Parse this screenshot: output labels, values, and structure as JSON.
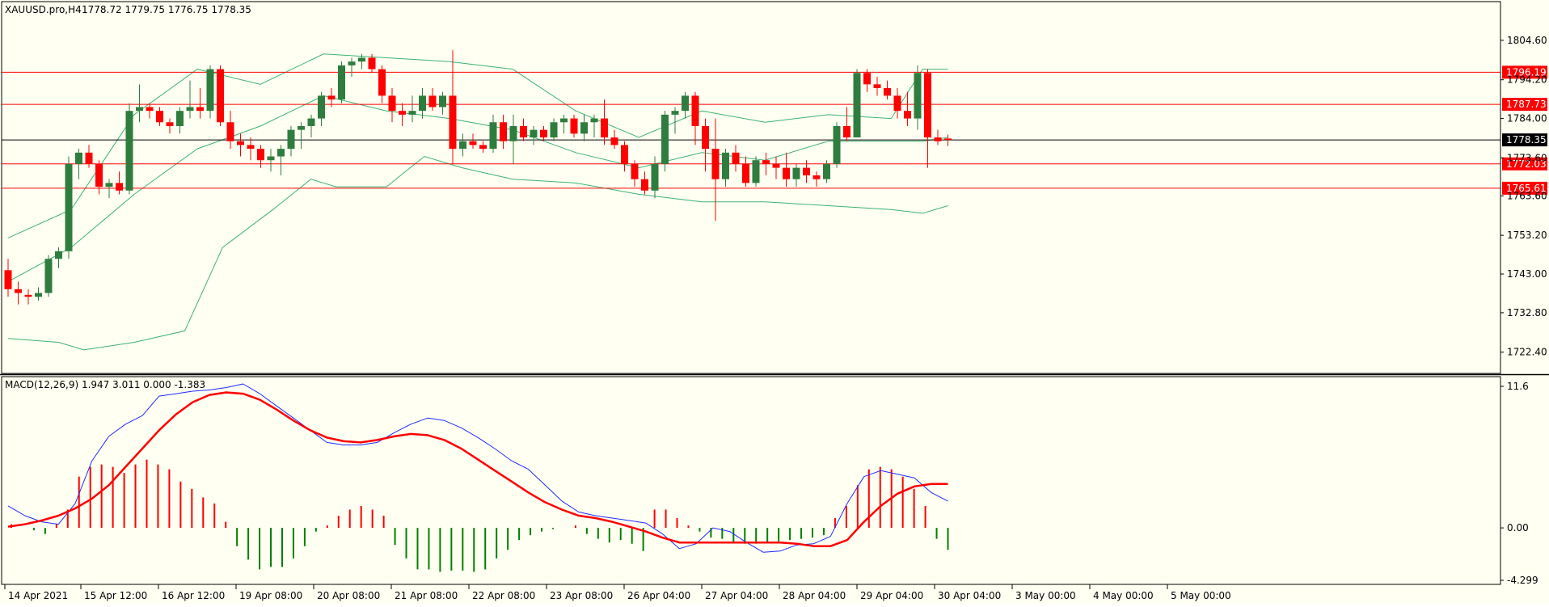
{
  "window": {
    "symbol_label": "XAUUSD.pro,H4",
    "ohlc_label": "1778.72 1779.75 1776.75 1778.35"
  },
  "macd_label": "MACD(12,26,9) 1.947 3.011 0.000 -1.383",
  "colors": {
    "background": "#fffff2",
    "bull": "#2e7d3e",
    "bear": "#ff0000",
    "bollinger": "#3cb371",
    "macd_line": "#1f2bff",
    "signal_line": "#ff0000",
    "hist_pos": "#ff0000",
    "hist_neg": "#008000",
    "hline": "#ff0000",
    "current": "#000000"
  },
  "chart_data": [
    {
      "type": "candlestick",
      "title": "XAUUSD.pro,H4",
      "ylim": [
        1716.8,
        1814.8
      ],
      "y_ticks": [
        "1804.60",
        "1794.20",
        "1784.00",
        "1773.60",
        "1763.60",
        "1753.20",
        "1743.00",
        "1732.80",
        "1722.40"
      ],
      "x_ticks": [
        "14 Apr 2021",
        "15 Apr 12:00",
        "16 Apr 12:00",
        "19 Apr 08:00",
        "20 Apr 08:00",
        "21 Apr 08:00",
        "22 Apr 08:00",
        "23 Apr 08:00",
        "26 Apr 04:00",
        "27 Apr 04:00",
        "28 Apr 04:00",
        "29 Apr 04:00",
        "30 Apr 04:00",
        "3 May 00:00",
        "4 May 00:00",
        "5 May 00:00"
      ],
      "horizontal_levels": [
        {
          "label": "1796.19",
          "value": 1796.19
        },
        {
          "label": "1787.73",
          "value": 1787.73
        },
        {
          "label": "1772.03",
          "value": 1772.03
        },
        {
          "label": "1765.61",
          "value": 1765.61
        }
      ],
      "current_price": {
        "label": "1778.35",
        "value": 1778.35
      },
      "candles": [
        [
          1744.0,
          1747.0,
          1737.0,
          1739.0
        ],
        [
          1739.0,
          1741.0,
          1735.0,
          1738.0
        ],
        [
          1737.5,
          1739.0,
          1735.0,
          1737.0
        ],
        [
          1737.0,
          1739.5,
          1736.0,
          1738.0
        ],
        [
          1738.0,
          1748.0,
          1737.0,
          1747.0
        ],
        [
          1747.0,
          1750.0,
          1744.5,
          1749.0
        ],
        [
          1749.0,
          1774.0,
          1747.0,
          1772.0
        ],
        [
          1772.0,
          1776.0,
          1768.0,
          1775.0
        ],
        [
          1775.0,
          1777.0,
          1771.0,
          1772.0
        ],
        [
          1772.0,
          1773.0,
          1764.0,
          1766.0
        ],
        [
          1766.0,
          1768.0,
          1763.0,
          1767.0
        ],
        [
          1767.0,
          1770.0,
          1764.0,
          1765.0
        ],
        [
          1765.0,
          1788.0,
          1764.0,
          1786.0
        ],
        [
          1786.0,
          1793.0,
          1783.0,
          1787.0
        ],
        [
          1787.0,
          1788.0,
          1784.0,
          1786.0
        ],
        [
          1786.0,
          1787.0,
          1782.0,
          1783.0
        ],
        [
          1783.0,
          1784.0,
          1780.0,
          1782.0
        ],
        [
          1782.0,
          1787.0,
          1780.0,
          1786.0
        ],
        [
          1786.0,
          1794.0,
          1784.0,
          1787.0
        ],
        [
          1787.0,
          1792.0,
          1784.0,
          1786.0
        ],
        [
          1786.0,
          1798.0,
          1784.0,
          1797.0
        ],
        [
          1797.0,
          1798.0,
          1782.0,
          1783.0
        ],
        [
          1783.0,
          1786.0,
          1776.0,
          1778.0
        ],
        [
          1778.0,
          1780.0,
          1774.0,
          1777.0
        ],
        [
          1777.0,
          1779.0,
          1773.0,
          1776.0
        ],
        [
          1776.0,
          1777.0,
          1771.0,
          1773.0
        ],
        [
          1773.0,
          1776.0,
          1770.0,
          1774.0
        ],
        [
          1774.0,
          1777.0,
          1769.0,
          1776.0
        ],
        [
          1776.0,
          1782.0,
          1774.0,
          1781.0
        ],
        [
          1781.0,
          1783.0,
          1776.0,
          1782.0
        ],
        [
          1782.0,
          1785.0,
          1779.0,
          1784.0
        ],
        [
          1784.0,
          1791.0,
          1782.0,
          1790.0
        ],
        [
          1790.0,
          1792.0,
          1787.0,
          1789.0
        ],
        [
          1789.0,
          1799.0,
          1788.0,
          1798.0
        ],
        [
          1798.0,
          1800.0,
          1795.0,
          1799.0
        ],
        [
          1799.0,
          1801.0,
          1797.0,
          1800.0
        ],
        [
          1800.0,
          1801.0,
          1796.0,
          1797.0
        ],
        [
          1797.0,
          1798.0,
          1788.0,
          1790.0
        ],
        [
          1790.0,
          1792.0,
          1783.0,
          1786.0
        ],
        [
          1786.0,
          1788.0,
          1782.0,
          1785.0
        ],
        [
          1785.0,
          1790.0,
          1783.0,
          1786.0
        ],
        [
          1786.0,
          1792.0,
          1784.0,
          1790.0
        ],
        [
          1790.0,
          1792.0,
          1786.0,
          1787.0
        ],
        [
          1787.0,
          1791.0,
          1785.0,
          1790.0
        ],
        [
          1790.0,
          1802.0,
          1772.0,
          1776.0
        ],
        [
          1776.0,
          1780.0,
          1774.0,
          1778.0
        ],
        [
          1778.0,
          1780.0,
          1776.0,
          1777.0
        ],
        [
          1777.0,
          1778.0,
          1775.0,
          1776.0
        ],
        [
          1776.0,
          1785.0,
          1775.0,
          1783.0
        ],
        [
          1783.0,
          1785.0,
          1776.0,
          1778.0
        ],
        [
          1778.0,
          1785.0,
          1772.0,
          1782.0
        ],
        [
          1782.0,
          1784.0,
          1778.0,
          1779.0
        ],
        [
          1779.0,
          1782.0,
          1777.0,
          1781.0
        ],
        [
          1781.0,
          1782.0,
          1778.0,
          1779.0
        ],
        [
          1779.0,
          1784.0,
          1778.0,
          1783.0
        ],
        [
          1783.0,
          1785.0,
          1780.0,
          1784.0
        ],
        [
          1784.0,
          1785.0,
          1779.0,
          1780.0
        ],
        [
          1780.0,
          1785.0,
          1778.0,
          1783.0
        ],
        [
          1783.0,
          1785.0,
          1779.0,
          1784.0
        ],
        [
          1784.0,
          1789.0,
          1777.0,
          1779.0
        ],
        [
          1779.0,
          1781.0,
          1776.0,
          1777.0
        ],
        [
          1777.0,
          1778.0,
          1770.0,
          1772.0
        ],
        [
          1772.0,
          1773.0,
          1766.0,
          1768.0
        ],
        [
          1768.0,
          1770.0,
          1764.0,
          1765.0
        ],
        [
          1765.0,
          1774.0,
          1763.0,
          1772.0
        ],
        [
          1772.0,
          1786.0,
          1770.0,
          1785.0
        ],
        [
          1785.0,
          1787.0,
          1780.0,
          1786.0
        ],
        [
          1786.0,
          1791.0,
          1784.0,
          1790.0
        ],
        [
          1790.0,
          1791.0,
          1777.0,
          1782.0
        ],
        [
          1782.0,
          1784.0,
          1770.0,
          1776.0
        ],
        [
          1776.0,
          1784.0,
          1757.0,
          1768.0
        ],
        [
          1768.0,
          1776.0,
          1766.0,
          1775.0
        ],
        [
          1775.0,
          1777.0,
          1770.0,
          1772.0
        ],
        [
          1772.0,
          1774.0,
          1766.0,
          1767.0
        ],
        [
          1767.0,
          1774.0,
          1766.0,
          1773.0
        ],
        [
          1773.0,
          1775.0,
          1769.0,
          1772.0
        ],
        [
          1772.0,
          1774.0,
          1768.0,
          1771.0
        ],
        [
          1771.0,
          1775.0,
          1766.0,
          1768.0
        ],
        [
          1768.0,
          1772.0,
          1766.0,
          1771.0
        ],
        [
          1771.0,
          1773.0,
          1767.0,
          1769.0
        ],
        [
          1769.0,
          1770.0,
          1766.0,
          1768.0
        ],
        [
          1768.0,
          1773.0,
          1767.0,
          1772.0
        ],
        [
          1772.0,
          1783.0,
          1771.0,
          1782.0
        ],
        [
          1782.0,
          1787.0,
          1778.0,
          1779.0
        ],
        [
          1779.0,
          1797.0,
          1779.0,
          1796.0
        ],
        [
          1796.0,
          1797.0,
          1791.0,
          1793.0
        ],
        [
          1793.0,
          1795.0,
          1790.0,
          1792.0
        ],
        [
          1792.0,
          1794.0,
          1789.0,
          1790.0
        ],
        [
          1790.0,
          1792.0,
          1784.0,
          1786.0
        ],
        [
          1786.0,
          1791.0,
          1782.0,
          1784.0
        ],
        [
          1784.0,
          1798.0,
          1781.0,
          1796.0
        ],
        [
          1796.0,
          1797.0,
          1771.0,
          1779.0
        ],
        [
          1779.0,
          1781.0,
          1777.0,
          1778.0
        ],
        [
          1778.72,
          1779.75,
          1776.75,
          1778.35
        ]
      ],
      "bollinger": {
        "upper": [
          [
            0,
            1752.5
          ],
          [
            10,
            1760
          ],
          [
            20,
            1785
          ],
          [
            30,
            1797
          ],
          [
            40,
            1793
          ],
          [
            50,
            1801
          ],
          [
            60,
            1800
          ],
          [
            70,
            1799
          ],
          [
            80,
            1797
          ],
          [
            90,
            1786
          ],
          [
            100,
            1779
          ],
          [
            110,
            1786
          ],
          [
            120,
            1783
          ],
          [
            130,
            1785
          ],
          [
            140,
            1784
          ],
          [
            145,
            1797
          ],
          [
            149,
            1797
          ]
        ],
        "middle": [
          [
            0,
            1741
          ],
          [
            10,
            1750
          ],
          [
            20,
            1764
          ],
          [
            30,
            1776
          ],
          [
            40,
            1782
          ],
          [
            50,
            1790
          ],
          [
            60,
            1786
          ],
          [
            70,
            1784
          ],
          [
            80,
            1781
          ],
          [
            90,
            1775
          ],
          [
            100,
            1771
          ],
          [
            110,
            1775
          ],
          [
            120,
            1773
          ],
          [
            130,
            1778
          ],
          [
            140,
            1778
          ],
          [
            145,
            1778
          ],
          [
            149,
            1779
          ]
        ],
        "lower": [
          [
            0,
            1726
          ],
          [
            8,
            1725
          ],
          [
            12,
            1723
          ],
          [
            20,
            1725
          ],
          [
            28,
            1728
          ],
          [
            34,
            1750
          ],
          [
            42,
            1760
          ],
          [
            48,
            1768
          ],
          [
            52,
            1766
          ],
          [
            60,
            1766
          ],
          [
            66,
            1774
          ],
          [
            72,
            1771
          ],
          [
            80,
            1768
          ],
          [
            90,
            1767
          ],
          [
            100,
            1764
          ],
          [
            110,
            1762
          ],
          [
            120,
            1762
          ],
          [
            130,
            1761
          ],
          [
            140,
            1760
          ],
          [
            145,
            1759
          ],
          [
            149,
            1761
          ]
        ]
      }
    },
    {
      "type": "line",
      "title": "MACD(12,26,9)",
      "ylim": [
        -4.299,
        11.6
      ],
      "y_ticks": [
        "11.6",
        "0.00",
        "-4.299"
      ],
      "macd": [
        1.8,
        1.0,
        0.5,
        0.3,
        2.0,
        5.5,
        7.5,
        8.5,
        9.2,
        10.8,
        11.0,
        11.2,
        11.3,
        11.5,
        11.8,
        11.0,
        10.0,
        9.0,
        8.0,
        7.0,
        6.8,
        6.8,
        7.0,
        7.8,
        8.5,
        9.0,
        8.8,
        8.2,
        7.4,
        6.5,
        5.5,
        4.8,
        3.5,
        2.2,
        1.3,
        1.0,
        0.8,
        0.6,
        0.4,
        -0.5,
        -1.7,
        -1.3,
        0.0,
        -0.3,
        -1.2,
        -2.0,
        -1.9,
        -1.4,
        -1.3,
        -0.7,
        2.0,
        4.2,
        4.7,
        4.4,
        4.1,
        2.9,
        2.2
      ],
      "signal": [
        0.1,
        0.3,
        0.6,
        1.0,
        1.6,
        2.4,
        3.5,
        5.0,
        6.5,
        8.0,
        9.3,
        10.3,
        10.9,
        11.1,
        11.0,
        10.5,
        9.7,
        8.8,
        8.0,
        7.4,
        7.1,
        7.0,
        7.2,
        7.5,
        7.7,
        7.6,
        7.2,
        6.5,
        5.6,
        4.7,
        3.8,
        2.9,
        2.1,
        1.5,
        1.0,
        0.8,
        0.5,
        0.1,
        -0.3,
        -0.8,
        -1.2,
        -1.2,
        -1.2,
        -1.2,
        -1.2,
        -1.2,
        -1.2,
        -1.3,
        -1.5,
        -1.5,
        -1.0,
        0.5,
        1.8,
        2.8,
        3.4,
        3.6,
        3.6
      ],
      "histogram": [
        0.3,
        0.0,
        -0.2,
        -0.5,
        0.3,
        1.5,
        4.2,
        5.0,
        5.2,
        5.0,
        4.5,
        5.2,
        5.6,
        5.2,
        4.8,
        3.8,
        3.2,
        2.5,
        2.0,
        0.5,
        -1.5,
        -2.6,
        -3.4,
        -3.2,
        -3.2,
        -2.5,
        -1.5,
        -0.3,
        0.2,
        1.0,
        1.5,
        1.8,
        1.5,
        1.0,
        -1.4,
        -2.5,
        -3.4,
        -3.4,
        -3.6,
        -3.5,
        -3.5,
        -3.6,
        -3.4,
        -2.5,
        -1.8,
        -1.0,
        -0.6,
        -0.3,
        -0.1,
        0.0,
        0.2,
        -0.5,
        -0.9,
        -1.2,
        -1.0,
        -1.3,
        -1.9,
        1.5,
        1.5,
        0.8,
        0.2,
        -0.3,
        -0.8,
        -0.9,
        -1.2,
        -1.3,
        -1.3,
        -1.2,
        -1.1,
        -1.0,
        -0.9,
        -0.8,
        -0.6,
        0.8,
        1.8,
        3.5,
        4.8,
        5.0,
        4.8,
        4.2,
        3.2,
        1.8,
        -0.9,
        -1.8
      ]
    }
  ]
}
